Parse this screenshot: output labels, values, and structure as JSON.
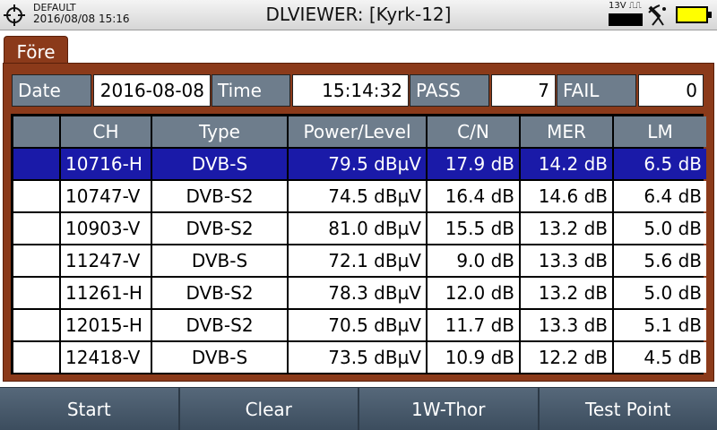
{
  "status": {
    "profile": "DEFAULT",
    "datetime": "2016/08/08 15:16",
    "title": "DLVIEWER: [Kyrk-12]",
    "lnb_label": "13V ⎍⎍"
  },
  "tab": {
    "label": "Före"
  },
  "info": {
    "date_label": "Date",
    "date_value": "2016-08-08",
    "time_label": "Time",
    "time_value": "15:14:32",
    "pass_label": "PASS",
    "pass_value": "7",
    "fail_label": "FAIL",
    "fail_value": "0"
  },
  "table": {
    "headers": [
      "",
      "CH",
      "Type",
      "Power/Level",
      "C/N",
      "MER",
      "LM"
    ],
    "selected_row": 0,
    "rows": [
      [
        "",
        "10716-H",
        "DVB-S",
        "79.5 dBµV",
        "17.9 dB",
        "14.2 dB",
        "6.5 dB"
      ],
      [
        "",
        "10747-V",
        "DVB-S2",
        "74.5 dBµV",
        "16.4 dB",
        "14.6 dB",
        "6.4 dB"
      ],
      [
        "",
        "10903-V",
        "DVB-S2",
        "81.0 dBµV",
        "15.5 dB",
        "13.2 dB",
        "5.0 dB"
      ],
      [
        "",
        "11247-V",
        "DVB-S",
        "72.1 dBµV",
        "9.0 dB",
        "13.3 dB",
        "5.6 dB"
      ],
      [
        "",
        "11261-H",
        "DVB-S2",
        "78.3 dBµV",
        "12.0 dB",
        "13.2 dB",
        "5.0 dB"
      ],
      [
        "",
        "12015-H",
        "DVB-S2",
        "70.5 dBµV",
        "11.7 dB",
        "13.3 dB",
        "5.1 dB"
      ],
      [
        "",
        "12418-V",
        "DVB-S",
        "73.5 dBµV",
        "10.9 dB",
        "12.2 dB",
        "4.5 dB"
      ]
    ]
  },
  "softkeys": [
    {
      "label": "Start"
    },
    {
      "label": "Clear"
    },
    {
      "label": "1W-Thor"
    },
    {
      "label": "Test Point"
    }
  ],
  "icons": {
    "crosshair": "crosshair-icon",
    "satellite": "satellite-icon",
    "battery": "battery-icon"
  },
  "colors": {
    "panel": "#8b3a1a",
    "header_cell": "#6e7d8c",
    "selected_row": "#1a1aa8",
    "battery": "#ffff00"
  }
}
